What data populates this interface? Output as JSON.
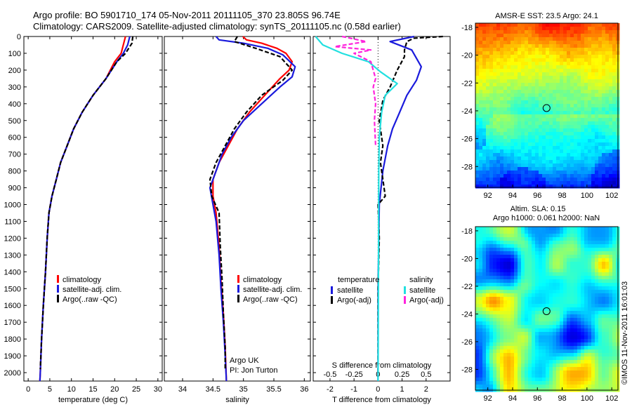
{
  "header": {
    "line1": "Argo profile: BO 5901710_174 05-Nov-2011 20111105_370 23.805S 96.74E",
    "line2": "Climatology: CARS2009. Satellite-adjusted climatology: synTS_20111105.nc (0.58d earlier)"
  },
  "credit": "©IMOS 11-Nov-2011 16:01:03",
  "colors": {
    "red": "#ff0000",
    "blue": "#1a1adc",
    "black": "#000000",
    "cyan": "#22e0e0",
    "magenta": "#ff22dd"
  },
  "chart_data": [
    {
      "type": "line",
      "xlabel": "temperature (deg C)",
      "xlim": [
        -1,
        31
      ],
      "xticks": [
        0,
        5,
        10,
        15,
        20,
        25,
        30
      ],
      "ylim": [
        2050,
        0
      ],
      "yticks": [
        0,
        100,
        200,
        300,
        400,
        500,
        600,
        700,
        800,
        900,
        1000,
        1100,
        1200,
        1300,
        1400,
        1500,
        1600,
        1700,
        1800,
        1900,
        2000
      ],
      "legend": [
        "climatology",
        "satellite-adj. clim.",
        "Argo(..raw -QC)"
      ],
      "legend_placement": "lower-left",
      "series": [
        {
          "name": "climatology",
          "color": "red",
          "points": [
            [
              22.5,
              0
            ],
            [
              22,
              50
            ],
            [
              21.5,
              100
            ],
            [
              20,
              150
            ],
            [
              18,
              250
            ],
            [
              15,
              350
            ],
            [
              12.5,
              450
            ],
            [
              10.5,
              550
            ],
            [
              9,
              650
            ],
            [
              7.5,
              750
            ],
            [
              6.5,
              850
            ],
            [
              5.5,
              950
            ],
            [
              4.8,
              1050
            ],
            [
              4.4,
              1200
            ],
            [
              4,
              1400
            ],
            [
              3.5,
              1600
            ],
            [
              3.1,
              1800
            ],
            [
              2.8,
              2000
            ],
            [
              2.7,
              2050
            ]
          ]
        },
        {
          "name": "satellite-adj. clim.",
          "color": "blue",
          "points": [
            [
              23.5,
              0
            ],
            [
              23,
              50
            ],
            [
              22,
              100
            ],
            [
              20.5,
              150
            ],
            [
              18,
              250
            ],
            [
              15,
              350
            ],
            [
              12.5,
              450
            ],
            [
              10.5,
              550
            ],
            [
              9,
              650
            ],
            [
              7.5,
              750
            ],
            [
              6.5,
              850
            ],
            [
              5.5,
              950
            ],
            [
              4.8,
              1050
            ],
            [
              4.4,
              1200
            ],
            [
              4,
              1400
            ],
            [
              3.5,
              1600
            ],
            [
              3.1,
              1800
            ],
            [
              2.8,
              2000
            ],
            [
              2.7,
              2050
            ]
          ]
        },
        {
          "name": "Argo(..raw -QC)",
          "color": "black",
          "dash": true,
          "points": [
            [
              24.2,
              0
            ],
            [
              24,
              40
            ],
            [
              22.5,
              100
            ],
            [
              20.5,
              150
            ],
            [
              18,
              250
            ],
            [
              15,
              350
            ],
            [
              12.5,
              450
            ],
            [
              10.5,
              550
            ],
            [
              9,
              650
            ],
            [
              7.5,
              750
            ],
            [
              6.5,
              850
            ],
            [
              5.5,
              950
            ],
            [
              4.8,
              1050
            ],
            [
              4.4,
              1200
            ],
            [
              4,
              1400
            ],
            [
              3.5,
              1600
            ],
            [
              3.1,
              1800
            ],
            [
              2.8,
              1980
            ]
          ]
        }
      ]
    },
    {
      "type": "line",
      "xlabel": "salinity",
      "xlim": [
        33.7,
        36.1
      ],
      "xticks": [
        34,
        34.5,
        35,
        35.5,
        36
      ],
      "ylim": [
        2050,
        0
      ],
      "legend": [
        "climatology",
        "satellite-adj. clim.",
        "Argo(..raw -QC)"
      ],
      "legend_placement": "lower-right",
      "annotation": [
        "Argo UK",
        "PI: Jon Turton"
      ],
      "series": [
        {
          "name": "climatology",
          "color": "red",
          "points": [
            [
              34.99,
              0
            ],
            [
              35.05,
              20
            ],
            [
              35.3,
              40
            ],
            [
              35.55,
              70
            ],
            [
              35.7,
              100
            ],
            [
              35.8,
              150
            ],
            [
              35.75,
              200
            ],
            [
              35.6,
              250
            ],
            [
              35.35,
              350
            ],
            [
              35.1,
              450
            ],
            [
              34.9,
              550
            ],
            [
              34.75,
              650
            ],
            [
              34.6,
              750
            ],
            [
              34.5,
              850
            ],
            [
              34.5,
              950
            ],
            [
              34.55,
              1050
            ],
            [
              34.6,
              1250
            ],
            [
              34.63,
              1450
            ],
            [
              34.67,
              1650
            ],
            [
              34.7,
              1850
            ],
            [
              34.72,
              2050
            ]
          ]
        },
        {
          "name": "satellite-adj. clim.",
          "color": "blue",
          "points": [
            [
              34.55,
              0
            ],
            [
              34.6,
              20
            ],
            [
              35,
              40
            ],
            [
              35.4,
              70
            ],
            [
              35.65,
              110
            ],
            [
              35.85,
              180
            ],
            [
              35.8,
              240
            ],
            [
              35.6,
              300
            ],
            [
              35.3,
              400
            ],
            [
              35,
              500
            ],
            [
              34.8,
              600
            ],
            [
              34.65,
              700
            ],
            [
              34.55,
              800
            ],
            [
              34.45,
              900
            ],
            [
              34.5,
              1000
            ],
            [
              34.55,
              1100
            ],
            [
              34.6,
              1300
            ],
            [
              34.63,
              1500
            ],
            [
              34.67,
              1700
            ],
            [
              34.7,
              1900
            ],
            [
              34.72,
              2050
            ]
          ]
        },
        {
          "name": "Argo(..raw -QC)",
          "color": "black",
          "dash": true,
          "points": [
            [
              34.9,
              0
            ],
            [
              34.85,
              30
            ],
            [
              35.2,
              70
            ],
            [
              35.6,
              120
            ],
            [
              35.8,
              200
            ],
            [
              35.65,
              260
            ],
            [
              35.3,
              350
            ],
            [
              35.05,
              450
            ],
            [
              34.85,
              550
            ],
            [
              34.7,
              650
            ],
            [
              34.55,
              750
            ],
            [
              34.45,
              850
            ],
            [
              34.48,
              950
            ],
            [
              34.6,
              1050
            ],
            [
              34.62,
              1250
            ],
            [
              34.65,
              1450
            ],
            [
              34.67,
              1650
            ],
            [
              34.7,
              1850
            ],
            [
              34.7,
              1980
            ]
          ]
        }
      ]
    },
    {
      "type": "line",
      "xlabel": "T difference from climatology",
      "x2label": "S difference from climatology",
      "xlim": [
        -2.7,
        3
      ],
      "xticks": [
        -2,
        -1,
        0,
        1,
        2
      ],
      "x2ticks": [
        -0.5,
        -0.25,
        0,
        0.25,
        0.5
      ],
      "ylim": [
        2050,
        0
      ],
      "legend_left_title": "temperature",
      "legend_right_title": "salinity",
      "legend_left": [
        "satellite",
        "Argo(-adj)"
      ],
      "legend_right": [
        "satellite",
        "Argo(-adj)"
      ],
      "legend_placement": "lower",
      "series": [
        {
          "name": "satellite",
          "group": "temperature",
          "color": "blue",
          "points": [
            [
              1.5,
              0
            ],
            [
              0.5,
              30
            ],
            [
              1.4,
              80
            ],
            [
              1.8,
              180
            ],
            [
              1.6,
              260
            ],
            [
              1.2,
              350
            ],
            [
              0.9,
              450
            ],
            [
              0.6,
              550
            ],
            [
              0.4,
              650
            ],
            [
              0.2,
              800
            ],
            [
              0.05,
              1000
            ],
            [
              0,
              1500
            ],
            [
              0,
              2050
            ]
          ]
        },
        {
          "name": "Argo(-adj)",
          "group": "temperature",
          "color": "black",
          "dash": true,
          "points": [
            [
              2.7,
              0
            ],
            [
              1.5,
              10
            ],
            [
              1.2,
              30
            ],
            [
              1.1,
              80
            ],
            [
              1.1,
              120
            ],
            [
              0.8,
              200
            ],
            [
              0.5,
              300
            ],
            [
              0.2,
              380
            ],
            [
              0.05,
              500
            ],
            [
              0.2,
              650
            ],
            [
              0.1,
              750
            ],
            [
              0.2,
              850
            ],
            [
              0.3,
              950
            ],
            [
              0,
              1000
            ],
            [
              0.05,
              1200
            ],
            [
              0,
              1500
            ],
            [
              0,
              2000
            ]
          ]
        },
        {
          "name": "satellite",
          "group": "salinity",
          "color": "cyan",
          "points": [
            [
              -2.6,
              0
            ],
            [
              -2.3,
              50
            ],
            [
              -1.5,
              100
            ],
            [
              -0.4,
              150
            ],
            [
              0.1,
              210
            ],
            [
              0.8,
              280
            ],
            [
              0.3,
              350
            ],
            [
              0.15,
              450
            ],
            [
              0.05,
              600
            ],
            [
              0.03,
              800
            ],
            [
              0.02,
              1200
            ],
            [
              0,
              2050
            ]
          ]
        },
        {
          "name": "Argo(-adj)",
          "group": "salinity",
          "color": "magenta",
          "dash": true,
          "points": [
            [
              -1.5,
              0
            ],
            [
              -0.5,
              30
            ],
            [
              -1.8,
              60
            ],
            [
              -0.3,
              80
            ],
            [
              -1,
              100
            ],
            [
              -0.3,
              150
            ],
            [
              -0.1,
              250
            ],
            [
              -0.2,
              300
            ],
            [
              -0.1,
              400
            ],
            [
              -0.15,
              500
            ],
            [
              -0.1,
              650
            ]
          ]
        }
      ]
    }
  ],
  "maps": [
    {
      "title": "AMSR-E SST: 23.5 Argo: 24.1",
      "xticks": [
        92,
        94,
        96,
        98,
        100,
        102
      ],
      "yticks": [
        -18,
        -20,
        -22,
        -24,
        -26,
        -28
      ],
      "xlim": [
        91,
        102.5
      ],
      "ylim": [
        -17.7,
        -29.5
      ],
      "marker": [
        96.74,
        -23.8
      ],
      "field": "sst"
    },
    {
      "title1": "Altim. SLA: 0.15",
      "title2": "Argo h1000: 0.061 h2000: NaN",
      "xticks": [
        92,
        94,
        96,
        98,
        100,
        102
      ],
      "yticks": [
        -18,
        -20,
        -22,
        -24,
        -26,
        -28
      ],
      "xlim": [
        91,
        102.5
      ],
      "ylim": [
        -17.7,
        -29.5
      ],
      "marker": [
        96.74,
        -23.8
      ],
      "field": "sla"
    }
  ]
}
